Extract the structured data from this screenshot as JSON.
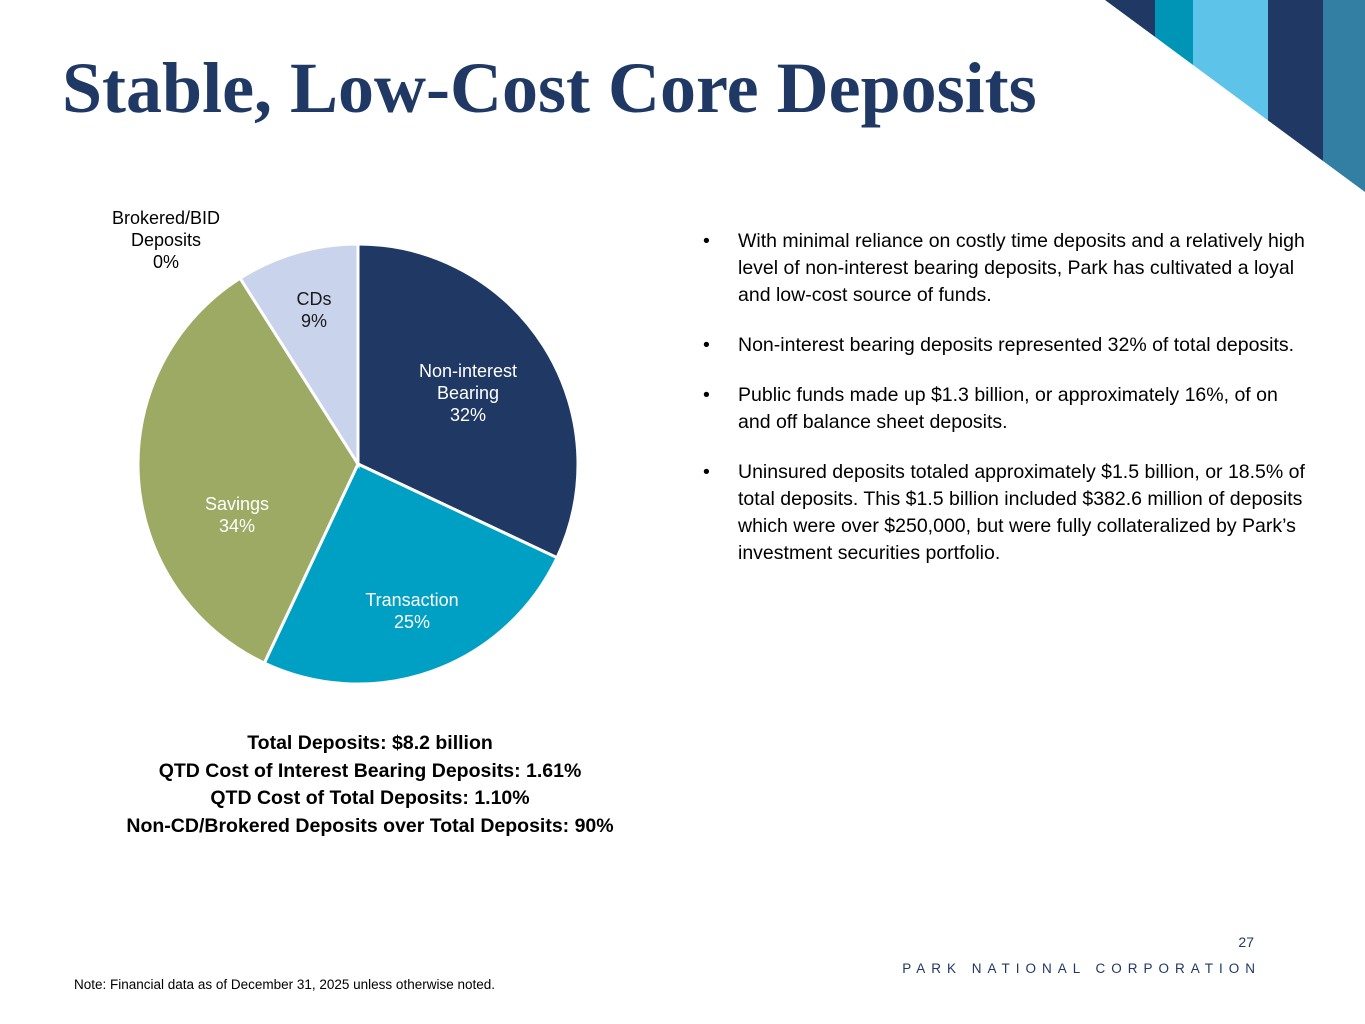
{
  "slide": {
    "title": "Stable, Low-Cost Core Deposits",
    "page_number": "27",
    "footer_company": "PARK NATIONAL CORPORATION",
    "footer_note": "Note: Financial data as of December 31, 2025 unless otherwise noted."
  },
  "bullets": [
    "With minimal reliance on costly time deposits and a relatively high level of non-interest bearing deposits, Park has cultivated a loyal and low-cost source of funds.",
    "Non-interest bearing deposits represented 32% of total deposits.",
    "Public funds made up $1.3 billion, or approximately 16%, of on and off balance sheet deposits.",
    "Uninsured deposits totaled approximately $1.5 billion, or 18.5% of total deposits. This $1.5 billion included $382.6 million of deposits which were over $250,000, but were fully collateralized by Park’s investment securities portfolio."
  ],
  "stats_lines": [
    "Total Deposits: $8.2 billion",
    "QTD Cost of Interest Bearing Deposits: 1.61%",
    "QTD Cost of Total Deposits: 1.10%",
    "Non-CD/Brokered Deposits over Total Deposits: 90%"
  ],
  "chart_data": {
    "type": "pie",
    "title": "Deposit composition (% of total deposits)",
    "categories": [
      "Non-interest Bearing",
      "Transaction",
      "Savings",
      "CDs",
      "Brokered/BID Deposits"
    ],
    "values": [
      32,
      25,
      34,
      9,
      0
    ],
    "unit": "%",
    "start_angle_deg": 0,
    "direction": "clockwise",
    "slice_colors": [
      "#1F3864",
      "#00A0C4",
      "#9CAA64",
      "#C9D3EC",
      "#FFFFFF"
    ],
    "label_text_colors": [
      "#FFFFFF",
      "#FFFFFF",
      "#FFFFFF",
      "#1A1A1A",
      "#000000"
    ],
    "label_lines": [
      [
        "Non-interest",
        "Bearing",
        "32%"
      ],
      [
        "Transaction",
        "25%"
      ],
      [
        "Savings",
        "34%"
      ],
      [
        "CDs",
        "9%"
      ],
      [
        "Brokered/BID",
        "Deposits",
        "0%"
      ]
    ],
    "legend_position": "none",
    "separator_color": "#FFFFFF"
  },
  "decoration": {
    "corner_stripe_colors": [
      "#1F3864",
      "#0095B6",
      "#5EC3E8",
      "#1F3864",
      "#337FA4"
    ]
  },
  "colors": {
    "navy": "#1F3864",
    "body_text": "#000000"
  }
}
